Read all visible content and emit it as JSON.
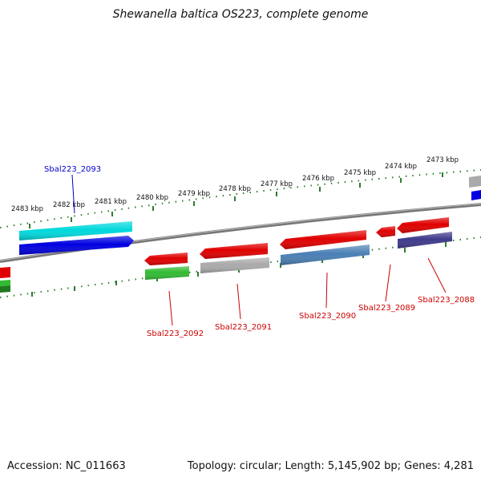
{
  "title": "Shewanella baltica OS223, complete genome",
  "footer": {
    "accession": "Accession: NC_011663",
    "stats": "Topology: circular; Length: 5,145,902 bp; Genes: 4,281"
  },
  "colors": {
    "backbone": "#808080",
    "tick_dots": "#2e7d2e",
    "label_red": "#cc0000",
    "label_blue": "#0000cc"
  },
  "scale_labels": [
    "2483 kbp",
    "2482 kbp",
    "2481 kbp",
    "2480 kbp",
    "2479 kbp",
    "2478 kbp",
    "2477 kbp",
    "2476 kbp",
    "2475 kbp",
    "2474 kbp",
    "2473 kbp"
  ],
  "gene_labels": [
    {
      "text": "Sbal223_2093",
      "color": "#0000cc"
    },
    {
      "text": "Sbal223_2092",
      "color": "#cc0000"
    },
    {
      "text": "Sbal223_2091",
      "color": "#cc0000"
    },
    {
      "text": "Sbal223_2090",
      "color": "#cc0000"
    },
    {
      "text": "Sbal223_2089",
      "color": "#cc0000"
    },
    {
      "text": "Sbal223_2088",
      "color": "#cc0000"
    }
  ],
  "features": [
    {
      "name": "cyan-bar",
      "color": "#00d8dc",
      "strand": "none"
    },
    {
      "name": "blue-arrow",
      "color": "#0000e0",
      "strand": "forward"
    },
    {
      "name": "red-arrow-2092",
      "color": "#e00000",
      "strand": "reverse"
    },
    {
      "name": "green-bar-2092",
      "color": "#33bb33",
      "strand": "none"
    },
    {
      "name": "red-arrow-2091",
      "color": "#e00000",
      "strand": "reverse"
    },
    {
      "name": "grey-bar-2091",
      "color": "#aaaaaa",
      "strand": "none"
    },
    {
      "name": "red-arrow-2090",
      "color": "#e00000",
      "strand": "reverse"
    },
    {
      "name": "steelblue-bar-2090",
      "color": "#4a7fb5",
      "strand": "none"
    },
    {
      "name": "red-arrow-2089",
      "color": "#e00000",
      "strand": "reverse"
    },
    {
      "name": "red-arrow-2088",
      "color": "#e00000",
      "strand": "reverse"
    },
    {
      "name": "navy-bar-2088",
      "color": "#3f3a8a",
      "strand": "none"
    }
  ]
}
